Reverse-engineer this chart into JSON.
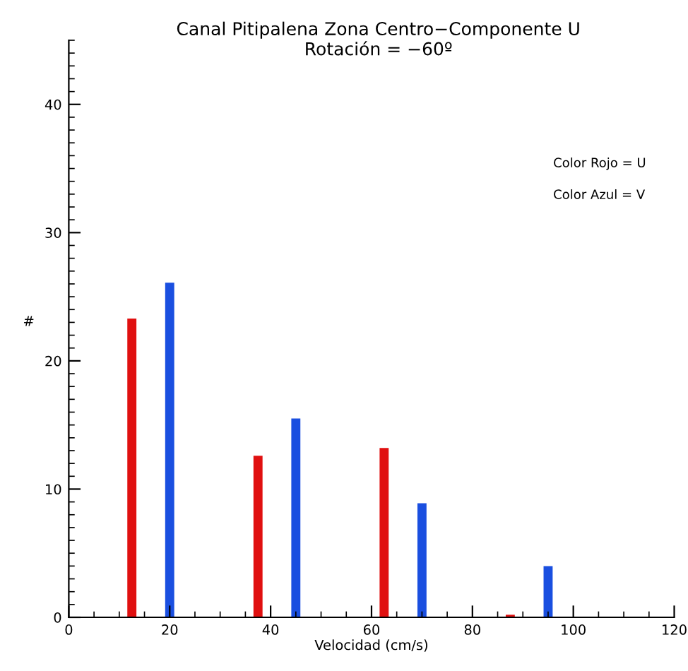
{
  "chart_data": {
    "type": "bar",
    "title": "Canal Pitipalena Zona Centro−Componente U",
    "subtitle": "Rotación = −60º",
    "xlabel": "Velocidad (cm/s)",
    "ylabel": "#",
    "series": [
      {
        "color": "#e01010",
        "x": [
          12.5,
          37.5,
          62.5,
          87.5
        ],
        "values": [
          23.3,
          12.6,
          13.2,
          0.2
        ]
      },
      {
        "color": "#1a4fe0",
        "x": [
          20,
          45,
          70,
          95
        ],
        "values": [
          26.1,
          15.5,
          8.9,
          4.0
        ]
      }
    ],
    "annotations": [
      "Color Rojo = U",
      "Color Azul = V"
    ],
    "xlim": [
      0,
      120
    ],
    "xticks": [
      0,
      20,
      40,
      60,
      80,
      100,
      120
    ],
    "ylim": [
      0,
      45
    ],
    "yticks": [
      0,
      10,
      20,
      30,
      40
    ],
    "grid": false,
    "legend": false
  }
}
